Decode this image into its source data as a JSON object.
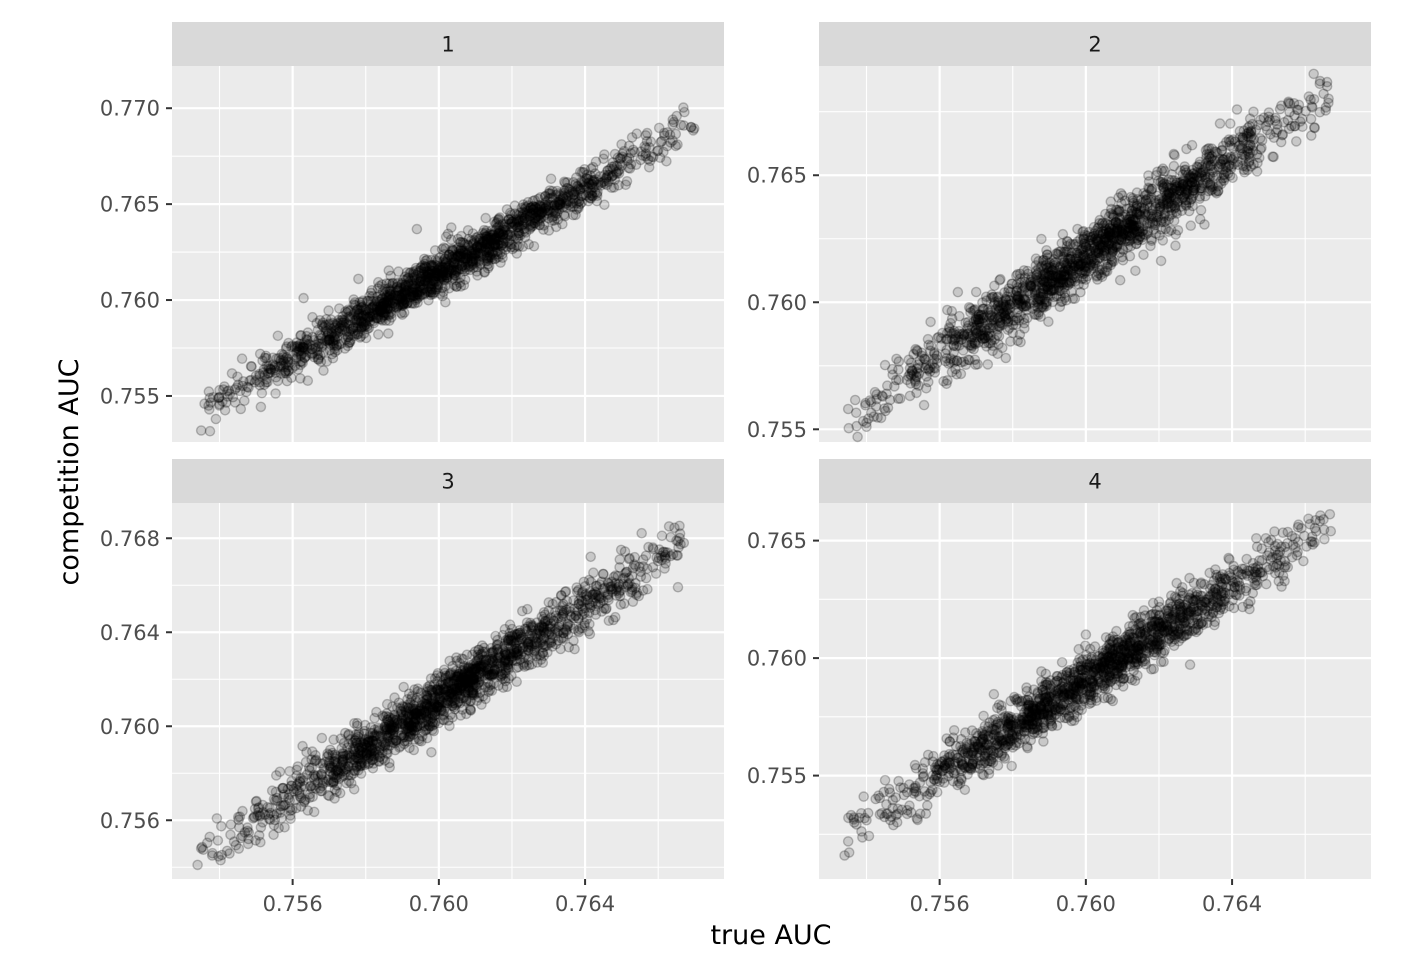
{
  "chart_data": {
    "type": "scatter",
    "xlabel": "true AUC",
    "ylabel": "competition AUC",
    "x_ticks": [
      0.756,
      0.76,
      0.764
    ],
    "x_tick_labels": [
      "0.756",
      "0.760",
      "0.764"
    ],
    "xlim": [
      0.7527,
      0.7678
    ],
    "grid": true,
    "legend": "none",
    "point_color": "#000000",
    "point_alpha": 0.15,
    "panel_background": "#ebebeb",
    "strip_background": "#d9d9d9",
    "panels": [
      {
        "label": "1",
        "ylim": [
          0.7526,
          0.7722
        ],
        "y_ticks": [
          0.755,
          0.76,
          0.765,
          0.77
        ],
        "y_tick_labels": [
          "0.755",
          "0.760",
          "0.765",
          "0.770"
        ],
        "trend": {
          "x": [
            0.7535,
            0.767
          ],
          "y": [
            0.7542,
            0.7692
          ]
        },
        "points": [
          [
            0.7535,
            0.7532
          ],
          [
            0.7537,
            0.7545
          ],
          [
            0.754,
            0.7553
          ],
          [
            0.7539,
            0.7538
          ],
          [
            0.7664,
            0.7694
          ],
          [
            0.7667,
            0.7691
          ],
          [
            0.7669,
            0.769
          ],
          [
            0.766,
            0.7678
          ],
          [
            0.7657,
            0.7687
          ],
          [
            0.7602,
            0.7633
          ],
          [
            0.7595,
            0.7617
          ],
          [
            0.7578,
            0.7611
          ],
          [
            0.7563,
            0.7601
          ],
          [
            0.7594,
            0.7637
          ],
          [
            0.758,
            0.7595
          ]
        ],
        "n": 1600,
        "spread": 0.00055
      },
      {
        "label": "2",
        "ylim": [
          0.7545,
          0.7693
        ],
        "y_ticks": [
          0.755,
          0.76,
          0.765
        ],
        "y_tick_labels": [
          "0.755",
          "0.760",
          "0.765"
        ],
        "trend": {
          "x": [
            0.7535,
            0.7667
          ],
          "y": [
            0.7554,
            0.7684
          ]
        },
        "points": [
          [
            0.7535,
            0.7558
          ],
          [
            0.754,
            0.7551
          ],
          [
            0.7542,
            0.7555
          ],
          [
            0.7664,
            0.7686
          ],
          [
            0.7666,
            0.7685
          ],
          [
            0.7661,
            0.7681
          ],
          [
            0.765,
            0.7673
          ],
          [
            0.761,
            0.7642
          ],
          [
            0.76,
            0.7612
          ],
          [
            0.7572,
            0.7595
          ],
          [
            0.7565,
            0.7604
          ],
          [
            0.7585,
            0.7608
          ]
        ],
        "n": 1600,
        "spread": 0.0006
      },
      {
        "label": "3",
        "ylim": [
          0.7535,
          0.7695
        ],
        "y_ticks": [
          0.756,
          0.76,
          0.764,
          0.768
        ],
        "y_tick_labels": [
          "0.756",
          "0.760",
          "0.764",
          "0.768"
        ],
        "trend": {
          "x": [
            0.7535,
            0.7668
          ],
          "y": [
            0.7545,
            0.768
          ]
        },
        "points": [
          [
            0.7535,
            0.7548
          ],
          [
            0.7534,
            0.7541
          ],
          [
            0.7538,
            0.7545
          ],
          [
            0.7665,
            0.7679
          ],
          [
            0.7667,
            0.7678
          ],
          [
            0.7662,
            0.7674
          ],
          [
            0.7657,
            0.7667
          ],
          [
            0.7642,
            0.7656
          ],
          [
            0.7637,
            0.7646
          ],
          [
            0.7612,
            0.763
          ],
          [
            0.7605,
            0.7615
          ],
          [
            0.7578,
            0.7586
          ],
          [
            0.7568,
            0.7595
          ]
        ],
        "n": 1600,
        "spread": 0.00058
      },
      {
        "label": "4",
        "ylim": [
          0.7506,
          0.7666
        ],
        "y_ticks": [
          0.755,
          0.76,
          0.765
        ],
        "y_tick_labels": [
          "0.755",
          "0.760",
          "0.765"
        ],
        "trend": {
          "x": [
            0.7535,
            0.7667
          ],
          "y": [
            0.7526,
            0.7657
          ]
        },
        "points": [
          [
            0.7535,
            0.7522
          ],
          [
            0.7534,
            0.7516
          ],
          [
            0.7538,
            0.7532
          ],
          [
            0.754,
            0.7531
          ],
          [
            0.7665,
            0.7659
          ],
          [
            0.7663,
            0.7654
          ],
          [
            0.7667,
            0.7654
          ],
          [
            0.7655,
            0.7645
          ],
          [
            0.7647,
            0.7639
          ],
          [
            0.762,
            0.7624
          ],
          [
            0.7605,
            0.7583
          ],
          [
            0.76,
            0.761
          ],
          [
            0.758,
            0.7567
          ]
        ],
        "n": 1600,
        "spread": 0.0006
      }
    ]
  }
}
